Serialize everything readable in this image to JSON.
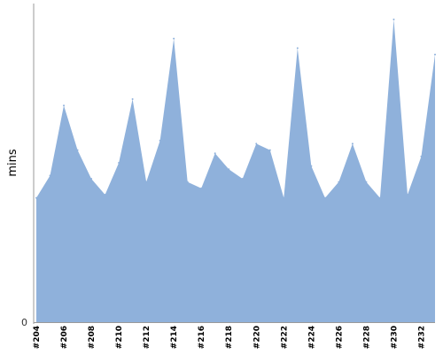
{
  "chart_data": {
    "type": "area",
    "title": "",
    "xlabel": "",
    "ylabel": "mins",
    "ylim": [
      0,
      100
    ],
    "y_tick_labels": [
      "0"
    ],
    "grid": false,
    "legend": "none",
    "x": [
      "#204",
      "#205",
      "#206",
      "#207",
      "#208",
      "#209",
      "#210",
      "#211",
      "#212",
      "#213",
      "#214",
      "#215",
      "#216",
      "#217",
      "#218",
      "#219",
      "#220",
      "#221",
      "#222",
      "#223",
      "#224",
      "#225",
      "#226",
      "#227",
      "#228",
      "#229",
      "#230",
      "#231",
      "#232",
      "#233"
    ],
    "x_tick_labels_shown": [
      "#204",
      "#206",
      "#208",
      "#210",
      "#212",
      "#214",
      "#216",
      "#218",
      "#220",
      "#222",
      "#224",
      "#226",
      "#228",
      "#230",
      "#232"
    ],
    "series": [
      {
        "values": [
          39,
          46,
          68,
          54,
          45,
          40,
          50,
          70,
          44,
          57,
          89,
          44,
          42,
          53,
          48,
          45,
          56,
          54,
          39,
          86,
          49,
          39,
          44,
          56,
          44,
          39,
          95,
          40,
          52,
          84
        ],
        "color": "#8fb1db"
      }
    ],
    "axis_color": "#999999"
  }
}
